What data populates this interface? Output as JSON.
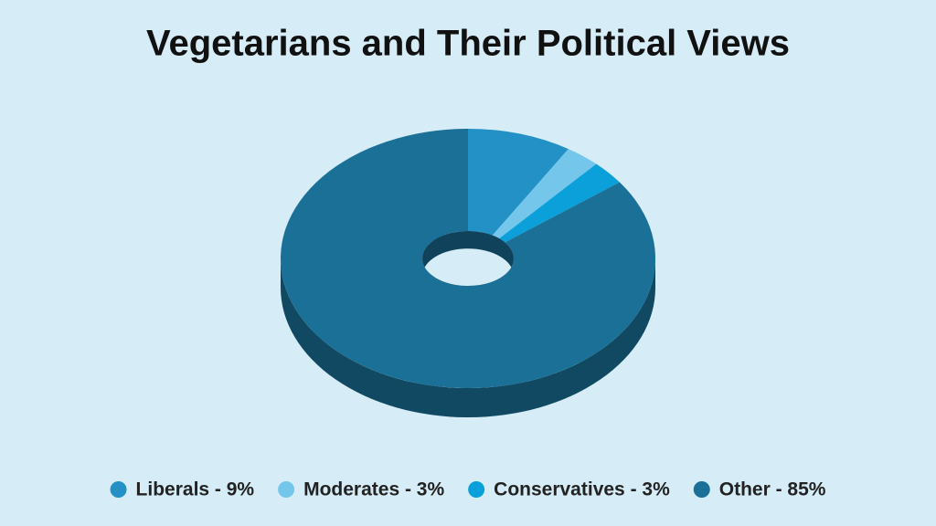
{
  "chart_data": {
    "type": "pie",
    "title": "Vegetarians and Their Political Views",
    "categories": [
      "Liberals - 9%",
      "Moderates - 3%",
      "Conservatives - 3%",
      "Other - 85%"
    ],
    "values": [
      9,
      3,
      3,
      85
    ],
    "colors": [
      "#2391c6",
      "#74c6ea",
      "#0ca0db",
      "#1b7097"
    ]
  }
}
